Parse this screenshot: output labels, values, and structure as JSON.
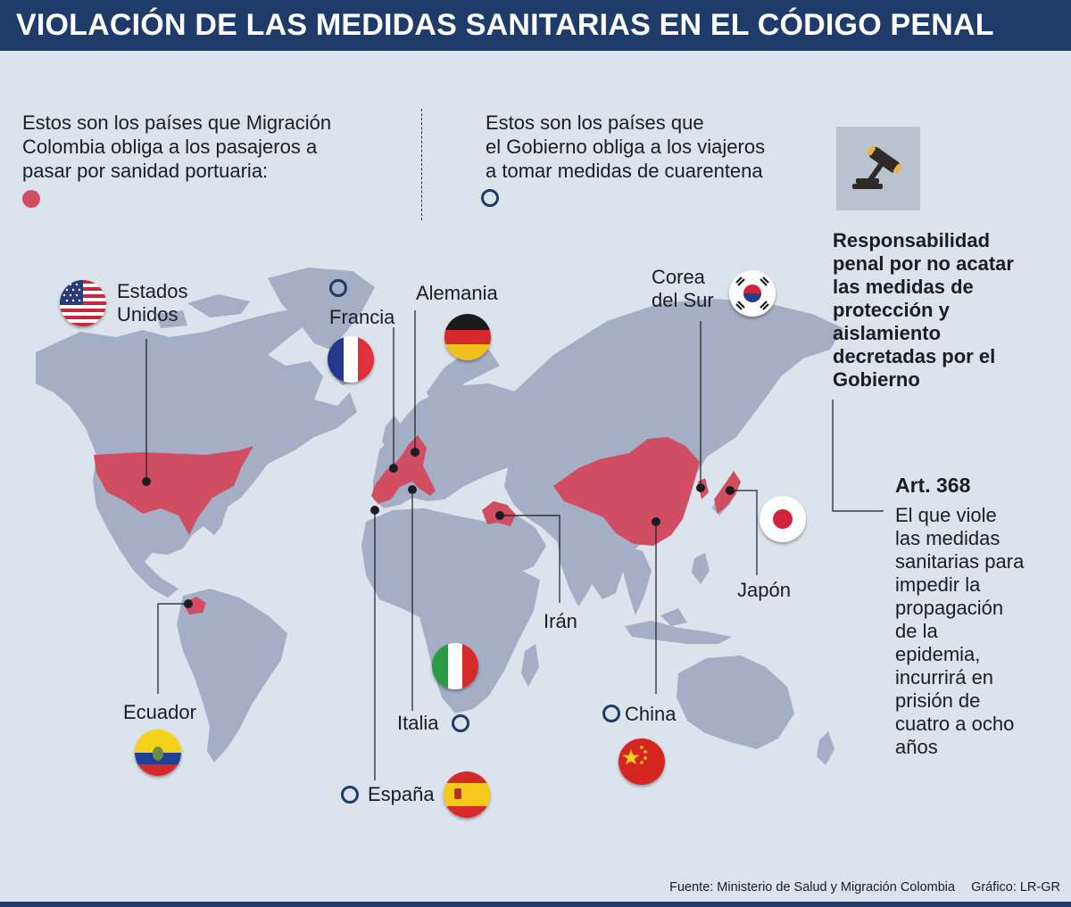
{
  "title": "VIOLACIÓN DE LAS MEDIDAS SANITARIAS EN EL CÓDIGO PENAL",
  "legend": {
    "red_text": "Estos son los países que Migración\nColombia obliga a los pasajeros a\npasar por sanidad portuaria:",
    "ring_text": "Estos son los países que\nel Gobierno obliga a los viajeros\na tomar medidas de cuarentena",
    "red_color": "#d14d62",
    "ring_color": "#1f3b6a"
  },
  "colors": {
    "land": "#a4aec4",
    "highlight": "#d14d62",
    "background": "#dbe3ec",
    "accent": "#1f3b6a"
  },
  "countries": {
    "usa": "Estados\nUnidos",
    "francia": "Francia",
    "alemania": "Alemania",
    "corea": "Corea\ndel Sur",
    "ecuador": "Ecuador",
    "iran": "Irán",
    "japon": "Japón",
    "italia": "Italia",
    "china": "China",
    "espana": "España"
  },
  "legal": {
    "heading": "Responsabilidad\npenal por no acatar\nlas medidas de\nprotección y\naislamiento\ndecretadas por el\nGobierno",
    "article_title": "Art. 368",
    "article_text": "El que viole\nlas medidas\nsanitarias para\nimpedir la\npropagación\nde la\nepidemia,\nincurrirá en\nprisión de\ncuatro a ocho\naños",
    "icon": "gavel-icon"
  },
  "footer": {
    "source": "Fuente: Ministerio de Salud y Migración Colombia",
    "credit": "Gráfico: LR-GR"
  }
}
